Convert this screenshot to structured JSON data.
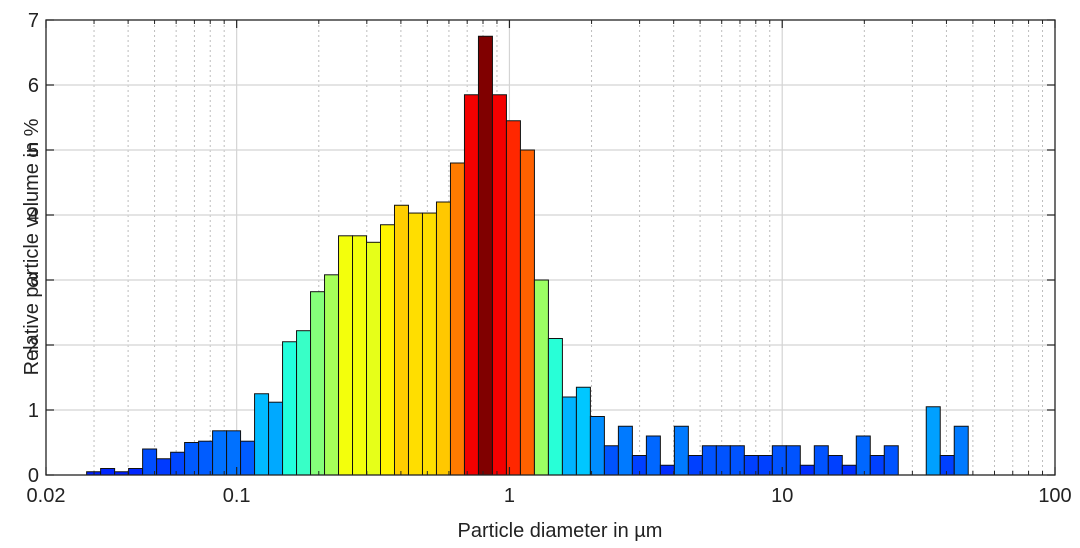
{
  "chart_data": {
    "type": "bar",
    "title": "",
    "xlabel": "Particle diameter in µm",
    "ylabel": "Relative particle volume in %",
    "xscale": "log",
    "xlim": [
      0.02,
      100
    ],
    "ylim": [
      0,
      7
    ],
    "xticks": [
      "0.02",
      "0.1",
      "1",
      "10",
      "100"
    ],
    "yticks": [
      "0",
      "1",
      "2",
      "3",
      "4",
      "5",
      "6",
      "7"
    ],
    "grid": true,
    "colormap": "jet",
    "bins_log10": {
      "start": -1.55,
      "step": 0.0513
    },
    "values": [
      0.05,
      0.1,
      0.05,
      0.1,
      0.4,
      0.25,
      0.35,
      0.5,
      0.52,
      0.68,
      0.68,
      0.52,
      1.25,
      1.12,
      2.05,
      2.22,
      2.82,
      3.08,
      3.68,
      3.68,
      3.58,
      3.85,
      4.15,
      4.03,
      4.03,
      4.2,
      4.8,
      5.85,
      6.75,
      5.85,
      5.45,
      5.0,
      3.0,
      2.1,
      1.2,
      1.35,
      0.9,
      0.45,
      0.75,
      0.3,
      0.6,
      0.15,
      0.75,
      0.3,
      0.45,
      0.45,
      0.45,
      0.3,
      0.3,
      0.45,
      0.45,
      0.15,
      0.45,
      0.3,
      0.15,
      0.6,
      0.3,
      0.45,
      0.0,
      0.0,
      1.05,
      0.3,
      0.75
    ]
  }
}
